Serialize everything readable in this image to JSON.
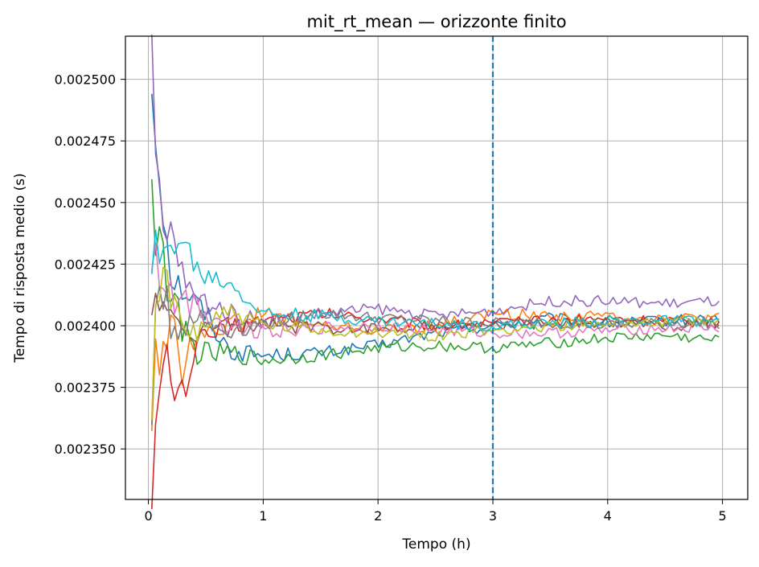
{
  "chart_data": {
    "type": "line",
    "title": "mit_rt_mean — orizzonte finito",
    "xlabel": "Tempo (h)",
    "ylabel": "Tempo di risposta medio (s)",
    "xlim": [
      -0.2,
      5.22
    ],
    "ylim": [
      0.0023295,
      0.0025175
    ],
    "x_ticks": [
      0,
      1,
      2,
      3,
      4,
      5
    ],
    "x_tick_labels": [
      "0",
      "1",
      "2",
      "3",
      "4",
      "5"
    ],
    "y_ticks": [
      0.0025,
      0.002475,
      0.00245,
      0.002425,
      0.0024,
      0.002375,
      0.00235
    ],
    "y_tick_labels": [
      "0.002500",
      "0.002475",
      "0.002450",
      "0.002425",
      "0.002400",
      "0.002375",
      "0.002350"
    ],
    "grid": true,
    "vline": {
      "x": 3,
      "style": "dashed",
      "color": "#1f77b4"
    },
    "series": [
      {
        "color": "#1f77b4",
        "x": [
          0.03,
          0.06,
          0.1,
          0.15,
          0.2,
          0.3,
          0.4,
          0.5,
          0.7,
          1.0,
          1.5,
          2.0,
          2.5,
          3.0,
          3.5,
          4.0,
          4.5,
          4.97
        ],
        "values": [
          0.002496,
          0.00248,
          0.00246,
          0.00244,
          0.00242,
          0.002415,
          0.00241,
          0.002405,
          0.00239,
          0.002388,
          0.002389,
          0.002392,
          0.002397,
          0.0024,
          0.002403,
          0.002401,
          0.002402,
          0.002403
        ]
      },
      {
        "color": "#ff7f0e",
        "x": [
          0.03,
          0.06,
          0.1,
          0.15,
          0.2,
          0.3,
          0.4,
          0.5,
          0.7,
          1.0,
          1.5,
          2.0,
          2.5,
          3.0,
          3.5,
          4.0,
          4.5,
          4.97
        ],
        "values": [
          0.002362,
          0.0024,
          0.00238,
          0.00239,
          0.00241,
          0.00238,
          0.002395,
          0.0024,
          0.0024,
          0.002405,
          0.0024,
          0.002398,
          0.0024,
          0.002405,
          0.002404,
          0.002404,
          0.002403,
          0.002403
        ]
      },
      {
        "color": "#2ca02c",
        "x": [
          0.03,
          0.06,
          0.1,
          0.15,
          0.2,
          0.3,
          0.4,
          0.5,
          0.7,
          1.0,
          1.5,
          2.0,
          2.5,
          3.0,
          3.5,
          4.0,
          4.5,
          4.97
        ],
        "values": [
          0.002467,
          0.00243,
          0.00244,
          0.00242,
          0.00241,
          0.0024,
          0.00239,
          0.002388,
          0.002389,
          0.002386,
          0.002388,
          0.002391,
          0.002392,
          0.002391,
          0.002393,
          0.002395,
          0.002396,
          0.002394
        ]
      },
      {
        "color": "#d62728",
        "x": [
          0.03,
          0.06,
          0.1,
          0.15,
          0.2,
          0.3,
          0.4,
          0.5,
          0.7,
          1.0,
          1.5,
          2.0,
          2.5,
          3.0,
          3.5,
          4.0,
          4.5,
          4.97
        ],
        "values": [
          0.002336,
          0.00236,
          0.00237,
          0.00239,
          0.002375,
          0.002372,
          0.00239,
          0.002395,
          0.0024,
          0.002402,
          0.002405,
          0.002403,
          0.0024,
          0.002401,
          0.002402,
          0.002403,
          0.002402,
          0.002401
        ]
      },
      {
        "color": "#9467bd",
        "x": [
          0.03,
          0.06,
          0.1,
          0.15,
          0.2,
          0.3,
          0.4,
          0.5,
          0.7,
          1.0,
          1.5,
          2.0,
          2.5,
          3.0,
          3.5,
          4.0,
          4.5,
          4.97
        ],
        "values": [
          0.00251,
          0.00247,
          0.00245,
          0.00243,
          0.00244,
          0.00242,
          0.00241,
          0.00241,
          0.002405,
          0.002402,
          0.002405,
          0.002407,
          0.002404,
          0.002406,
          0.00241,
          0.00241,
          0.002409,
          0.00241
        ]
      },
      {
        "color": "#8c564b",
        "x": [
          0.03,
          0.06,
          0.1,
          0.15,
          0.2,
          0.3,
          0.4,
          0.5,
          0.7,
          1.0,
          1.5,
          2.0,
          2.5,
          3.0,
          3.5,
          4.0,
          4.5,
          4.97
        ],
        "values": [
          0.002399,
          0.00241,
          0.002415,
          0.00241,
          0.0024,
          0.002395,
          0.002398,
          0.0024,
          0.002399,
          0.0024,
          0.002399,
          0.002399,
          0.0024,
          0.0024,
          0.002401,
          0.002401,
          0.0024,
          0.002401
        ]
      },
      {
        "color": "#e377c2",
        "x": [
          0.03,
          0.06,
          0.1,
          0.15,
          0.2,
          0.3,
          0.4,
          0.5,
          0.7,
          1.0,
          1.5,
          2.0,
          2.5,
          3.0,
          3.5,
          4.0,
          4.5,
          4.97
        ],
        "values": [
          0.00242,
          0.00243,
          0.00242,
          0.00242,
          0.00241,
          0.00241,
          0.00241,
          0.002405,
          0.0024,
          0.002398,
          0.002399,
          0.0024,
          0.002398,
          0.002397,
          0.002397,
          0.002398,
          0.002399,
          0.002399
        ]
      },
      {
        "color": "#7f7f7f",
        "x": [
          0.03,
          0.06,
          0.1,
          0.15,
          0.2,
          0.3,
          0.4,
          0.5,
          0.7,
          1.0,
          1.5,
          2.0,
          2.5,
          3.0,
          3.5,
          4.0,
          4.5,
          4.97
        ],
        "values": [
          0.00236,
          0.0024,
          0.00242,
          0.00241,
          0.0024,
          0.0024,
          0.002405,
          0.0024,
          0.002398,
          0.002401,
          0.002405,
          0.002403,
          0.002402,
          0.002401,
          0.002401,
          0.0024,
          0.002401,
          0.002401
        ]
      },
      {
        "color": "#bcbd22",
        "x": [
          0.03,
          0.06,
          0.1,
          0.15,
          0.2,
          0.3,
          0.4,
          0.5,
          0.7,
          1.0,
          1.5,
          2.0,
          2.5,
          3.0,
          3.5,
          4.0,
          4.5,
          4.97
        ],
        "values": [
          0.002365,
          0.0024,
          0.00241,
          0.00242,
          0.00241,
          0.0024,
          0.002398,
          0.002402,
          0.002406,
          0.0024,
          0.002398,
          0.002397,
          0.002396,
          0.002398,
          0.0024,
          0.002401,
          0.002402,
          0.002401
        ]
      },
      {
        "color": "#17becf",
        "x": [
          0.03,
          0.06,
          0.1,
          0.15,
          0.2,
          0.3,
          0.4,
          0.5,
          0.7,
          1.0,
          1.5,
          2.0,
          2.5,
          3.0,
          3.5,
          4.0,
          4.5,
          4.97
        ],
        "values": [
          0.002427,
          0.00243,
          0.00242,
          0.00243,
          0.002435,
          0.002435,
          0.002425,
          0.00242,
          0.002418,
          0.002405,
          0.002404,
          0.002402,
          0.002401,
          0.0024,
          0.002401,
          0.002402,
          0.002402,
          0.002402
        ]
      }
    ]
  }
}
